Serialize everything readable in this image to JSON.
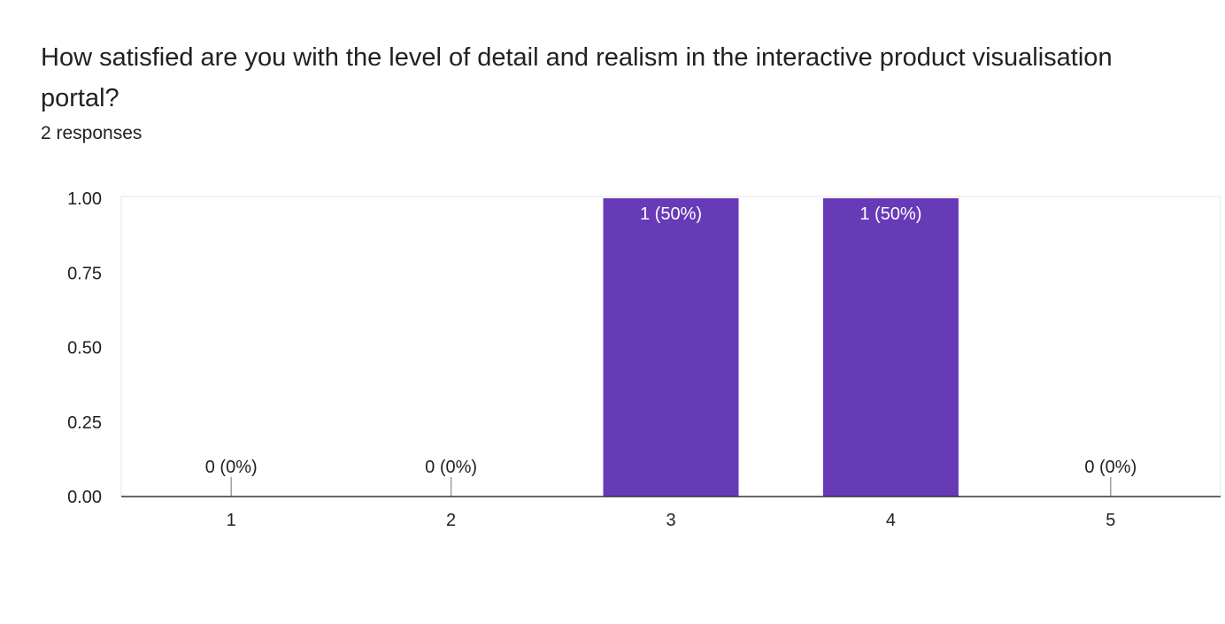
{
  "question": {
    "title": "How satisfied are you with the level of detail and realism in the interactive product visualisation portal?",
    "responses": "2 responses"
  },
  "chart_data": {
    "type": "bar",
    "categories": [
      "1",
      "2",
      "3",
      "4",
      "5"
    ],
    "values": [
      0,
      0,
      1,
      1,
      0
    ],
    "data_labels": [
      "0 (0%)",
      "0 (0%)",
      "1 (50%)",
      "1 (50%)",
      "0 (0%)"
    ],
    "yticks": [
      "0.00",
      "0.25",
      "0.50",
      "0.75",
      "1.00"
    ],
    "ylim": [
      0,
      1
    ],
    "title": "",
    "xlabel": "",
    "ylabel": "",
    "grid": false,
    "bar_color": "#673ab7"
  }
}
